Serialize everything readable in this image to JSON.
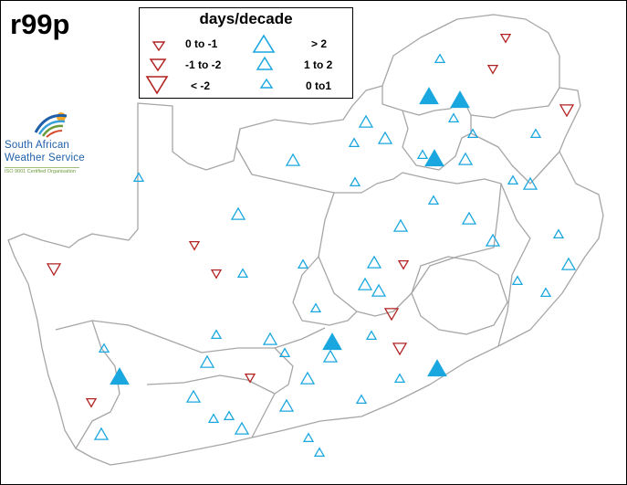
{
  "title": "r99p",
  "legend": {
    "title": "days/decade",
    "decrease": [
      {
        "label": "0 to -1",
        "size": "small"
      },
      {
        "label": "-1 to -2",
        "size": "medium"
      },
      {
        "label": "< -2",
        "size": "large"
      }
    ],
    "increase": [
      {
        "label": "> 2",
        "size": "large"
      },
      {
        "label": "1 to 2",
        "size": "medium"
      },
      {
        "label": "0 to1",
        "size": "small"
      }
    ],
    "significant_symbol": "filled triangle"
  },
  "logo": {
    "line1": "South African",
    "line2": "Weather Service",
    "iso": "ISO 9001 Certified Organisation"
  },
  "colors": {
    "decrease": "#b22222",
    "increase": "#1aa7e0",
    "border": "#a6a6a6",
    "legend_text": "#000000"
  },
  "symbol_sizes": {
    "small": 10,
    "medium": 14,
    "large": 19
  }
}
